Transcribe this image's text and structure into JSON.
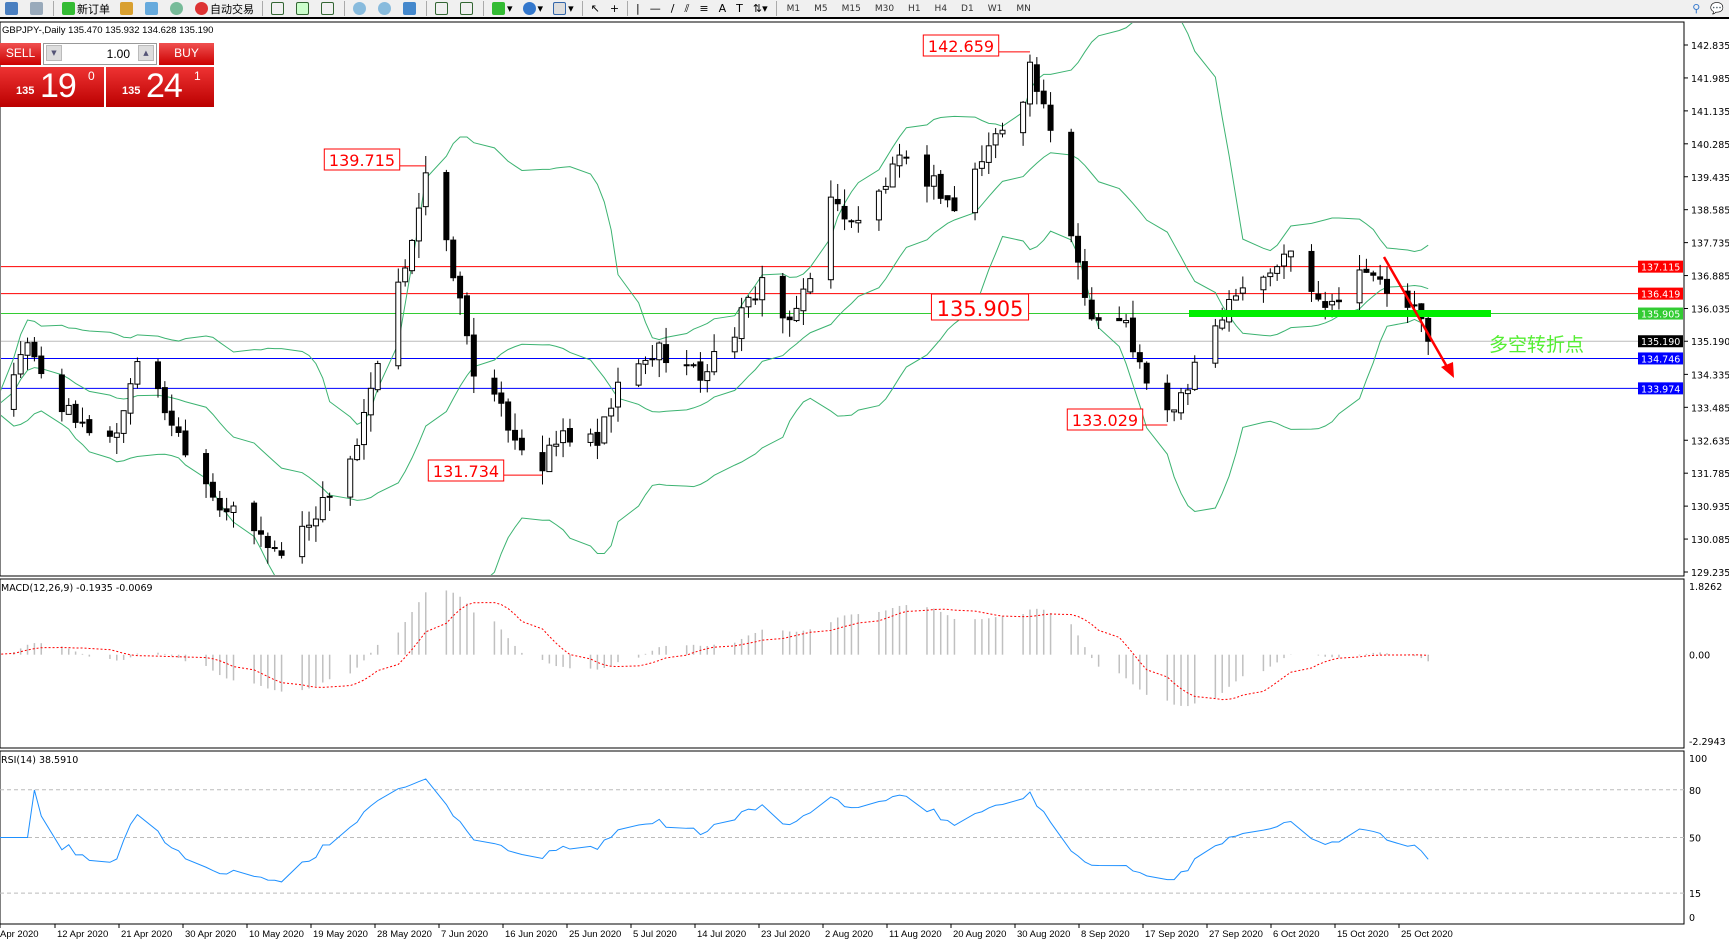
{
  "toolbar": {
    "new_order": "新订单",
    "auto_trading": "自动交易",
    "timeframes": [
      "M1",
      "M5",
      "M15",
      "M30",
      "H1",
      "H4",
      "D1",
      "W1",
      "MN"
    ]
  },
  "symbol_info": "GBPJPY-,Daily  135.470 135.932 134.628 135.190",
  "trade_panel": {
    "sell": "SELL",
    "buy": "BUY",
    "lot": "1.00",
    "sell_prefix": "135",
    "sell_big": "19",
    "sell_exp": "0",
    "buy_prefix": "135",
    "buy_big": "24",
    "buy_exp": "1"
  },
  "chart_data": [
    {
      "type": "candlestick",
      "title": "GBPJPY-,Daily",
      "ylim": [
        129.235,
        142.835
      ],
      "y_ticks": [
        "142.835",
        "141.985",
        "141.135",
        "140.285",
        "139.435",
        "138.585",
        "137.735",
        "136.885",
        "136.035",
        "135.190",
        "134.335",
        "133.485",
        "132.635",
        "131.785",
        "130.935",
        "130.085",
        "129.235"
      ],
      "x_ticks": [
        "Apr 2020",
        "12 Apr 2020",
        "21 Apr 2020",
        "30 Apr 2020",
        "10 May 2020",
        "19 May 2020",
        "28 May 2020",
        "7 Jun 2020",
        "16 Jun 2020",
        "25 Jun 2020",
        "5 Jul 2020",
        "14 Jul 2020",
        "23 Jul 2020",
        "2 Aug 2020",
        "11 Aug 2020",
        "20 Aug 2020",
        "30 Aug 2020",
        "8 Sep 2020",
        "17 Sep 2020",
        "27 Sep 2020",
        "6 Oct 2020",
        "15 Oct 2020",
        "25 Oct 2020"
      ],
      "price_path": [
        [
          "2020-04-03",
          133.5
        ],
        [
          "2020-04-08",
          135.0
        ],
        [
          "2020-04-15",
          133.0
        ],
        [
          "2020-04-21",
          132.8
        ],
        [
          "2020-04-24",
          134.8
        ],
        [
          "2020-04-30",
          132.8
        ],
        [
          "2020-05-06",
          131.0
        ],
        [
          "2020-05-15",
          129.7
        ],
        [
          "2020-05-21",
          131.0
        ],
        [
          "2020-05-26",
          132.5
        ],
        [
          "2020-06-01",
          136.5
        ],
        [
          "2020-06-05",
          139.4
        ],
        [
          "2020-06-09",
          137.0
        ],
        [
          "2020-06-12",
          134.5
        ],
        [
          "2020-06-19",
          132.5
        ],
        [
          "2020-06-22",
          132.0
        ],
        [
          "2020-06-25",
          132.8
        ],
        [
          "2020-06-30",
          132.5
        ],
        [
          "2020-07-03",
          134.0
        ],
        [
          "2020-07-09",
          135.0
        ],
        [
          "2020-07-15",
          134.3
        ],
        [
          "2020-07-20",
          135.5
        ],
        [
          "2020-07-24",
          136.8
        ],
        [
          "2020-07-28",
          135.5
        ],
        [
          "2020-07-31",
          137.0
        ],
        [
          "2020-08-03",
          138.8
        ],
        [
          "2020-08-07",
          138.2
        ],
        [
          "2020-08-13",
          139.8
        ],
        [
          "2020-08-18",
          139.3
        ],
        [
          "2020-08-21",
          138.6
        ],
        [
          "2020-08-26",
          140.2
        ],
        [
          "2020-08-31",
          141.6
        ],
        [
          "2020-09-01",
          142.3
        ],
        [
          "2020-09-04",
          140.5
        ],
        [
          "2020-09-07",
          138.0
        ],
        [
          "2020-09-10",
          135.8
        ],
        [
          "2020-09-15",
          135.6
        ],
        [
          "2020-09-18",
          134.0
        ],
        [
          "2020-09-21",
          133.3
        ],
        [
          "2020-09-24",
          134.0
        ],
        [
          "2020-09-28",
          135.6
        ],
        [
          "2020-10-01",
          136.6
        ],
        [
          "2020-10-06",
          137.0
        ],
        [
          "2020-10-09",
          137.5
        ],
        [
          "2020-10-13",
          136.2
        ],
        [
          "2020-10-16",
          136.4
        ],
        [
          "2020-10-20",
          137.2
        ],
        [
          "2020-10-23",
          136.4
        ],
        [
          "2020-10-27",
          136.0
        ],
        [
          "2020-10-29",
          135.19
        ]
      ],
      "indicator": "Bollinger Bands (20,2)",
      "levels": [
        {
          "price": 137.115,
          "label": "137.115",
          "color": "#ff0000"
        },
        {
          "price": 136.419,
          "label": "136.419",
          "color": "#ff0000"
        },
        {
          "price": 135.905,
          "label": "135.905",
          "color": "#33cc33"
        },
        {
          "price": 135.19,
          "label": "135.190",
          "color": "#000000"
        },
        {
          "price": 134.746,
          "label": "134.746",
          "color": "#0000ff"
        },
        {
          "price": 133.974,
          "label": "133.974",
          "color": "#0000ff"
        }
      ],
      "annotations": [
        {
          "text": "142.659",
          "date": "2020-09-01",
          "price": 142.659
        },
        {
          "text": "139.715",
          "date": "2020-06-05",
          "price": 139.715
        },
        {
          "text": "135.905",
          "date": "2020-08-31",
          "price": 135.905
        },
        {
          "text": "131.734",
          "date": "2020-06-22",
          "price": 131.734
        },
        {
          "text": "133.029",
          "date": "2020-09-21",
          "price": 133.029
        }
      ],
      "note": "多空转折点"
    },
    {
      "type": "bar+line",
      "title": "MACD(12,26,9) -0.1935 -0.0069",
      "y_ticks": [
        "1.8262",
        "0.00",
        "-2.2943"
      ],
      "ylim": [
        -2.2943,
        1.8262
      ]
    },
    {
      "type": "line",
      "title": "RSI(14) 38.5910",
      "y_ticks": [
        "100",
        "80",
        "50",
        "15",
        "0"
      ],
      "ylim": [
        0,
        100
      ],
      "levels": [
        80,
        50,
        15
      ]
    }
  ]
}
